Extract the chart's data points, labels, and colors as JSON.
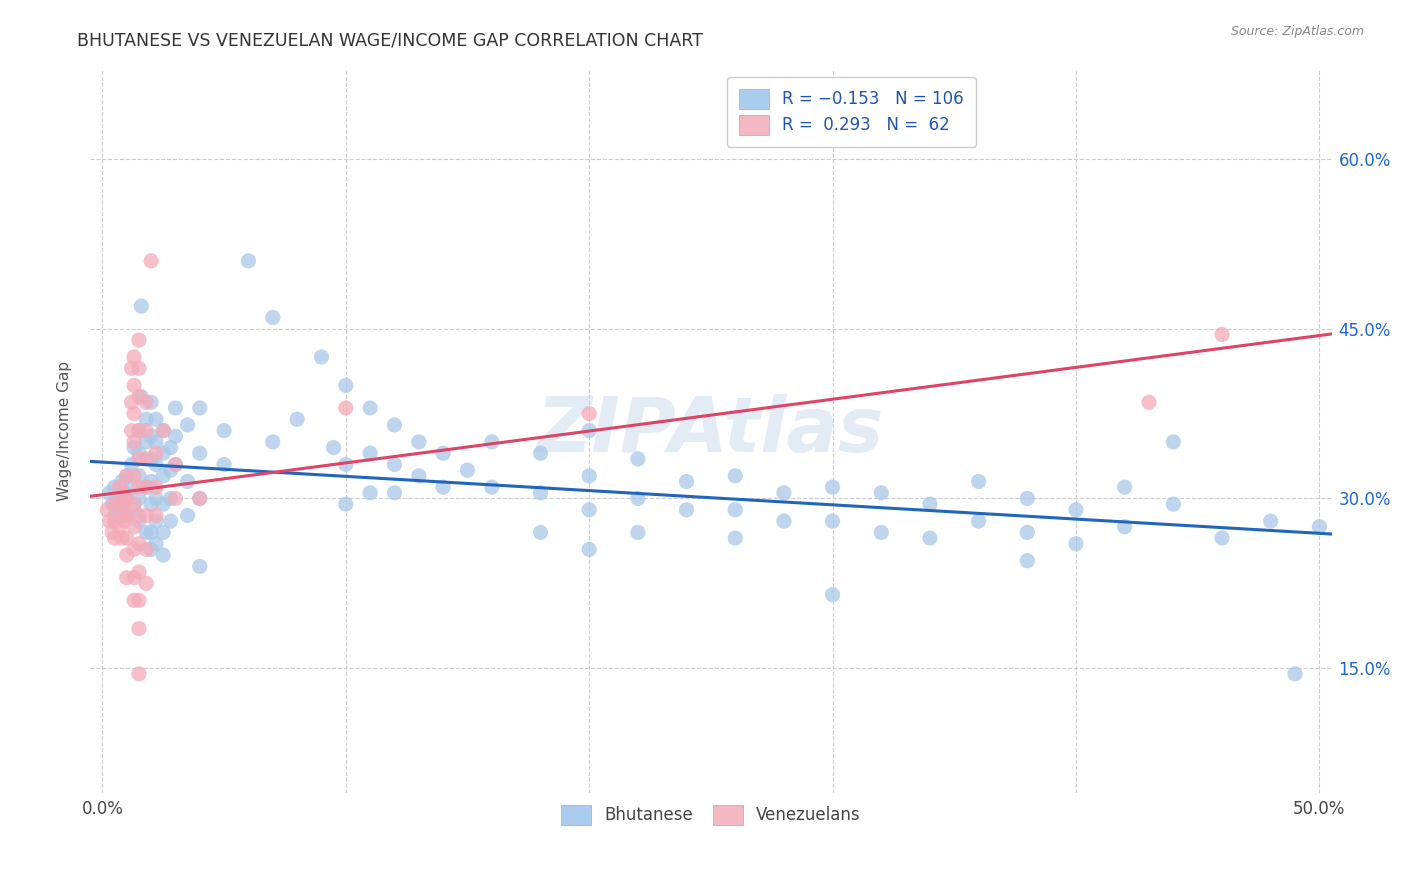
{
  "title": "BHUTANESE VS VENEZUELAN WAGE/INCOME GAP CORRELATION CHART",
  "source": "Source: ZipAtlas.com",
  "ylabel": "Wage/Income Gap",
  "ytick_labels": [
    "15.0%",
    "30.0%",
    "45.0%",
    "60.0%"
  ],
  "ytick_values": [
    0.15,
    0.3,
    0.45,
    0.6
  ],
  "xtick_values": [
    0.0,
    0.1,
    0.2,
    0.3,
    0.4,
    0.5
  ],
  "xlim": [
    -0.005,
    0.505
  ],
  "ylim": [
    0.04,
    0.68
  ],
  "watermark": "ZIPAtlas",
  "blue_scatter_color": "#a8c8e8",
  "pink_scatter_color": "#f4aab8",
  "blue_line_color": "#2266bb",
  "pink_line_color": "#dd4466",
  "blue_legend_color": "#aaccee",
  "pink_legend_color": "#f4b8c4",
  "legend_text_color": "#2255aa",
  "ytick_color": "#2266cc",
  "title_color": "#333333",
  "source_color": "#888888",
  "grid_color": "#cccccc",
  "bottom_label_color": "#444444",
  "blue_points": [
    [
      0.003,
      0.305
    ],
    [
      0.004,
      0.295
    ],
    [
      0.005,
      0.285
    ],
    [
      0.005,
      0.31
    ],
    [
      0.006,
      0.3
    ],
    [
      0.007,
      0.29
    ],
    [
      0.008,
      0.315
    ],
    [
      0.008,
      0.295
    ],
    [
      0.009,
      0.305
    ],
    [
      0.01,
      0.32
    ],
    [
      0.01,
      0.3
    ],
    [
      0.01,
      0.285
    ],
    [
      0.012,
      0.33
    ],
    [
      0.012,
      0.31
    ],
    [
      0.013,
      0.345
    ],
    [
      0.013,
      0.29
    ],
    [
      0.015,
      0.36
    ],
    [
      0.015,
      0.34
    ],
    [
      0.015,
      0.32
    ],
    [
      0.015,
      0.3
    ],
    [
      0.015,
      0.28
    ],
    [
      0.016,
      0.47
    ],
    [
      0.016,
      0.39
    ],
    [
      0.018,
      0.37
    ],
    [
      0.018,
      0.35
    ],
    [
      0.018,
      0.31
    ],
    [
      0.018,
      0.27
    ],
    [
      0.02,
      0.385
    ],
    [
      0.02,
      0.355
    ],
    [
      0.02,
      0.335
    ],
    [
      0.02,
      0.315
    ],
    [
      0.02,
      0.295
    ],
    [
      0.02,
      0.27
    ],
    [
      0.02,
      0.255
    ],
    [
      0.022,
      0.37
    ],
    [
      0.022,
      0.35
    ],
    [
      0.022,
      0.33
    ],
    [
      0.022,
      0.3
    ],
    [
      0.022,
      0.28
    ],
    [
      0.022,
      0.26
    ],
    [
      0.025,
      0.36
    ],
    [
      0.025,
      0.34
    ],
    [
      0.025,
      0.32
    ],
    [
      0.025,
      0.295
    ],
    [
      0.025,
      0.27
    ],
    [
      0.025,
      0.25
    ],
    [
      0.028,
      0.345
    ],
    [
      0.028,
      0.325
    ],
    [
      0.028,
      0.3
    ],
    [
      0.028,
      0.28
    ],
    [
      0.03,
      0.38
    ],
    [
      0.03,
      0.355
    ],
    [
      0.03,
      0.33
    ],
    [
      0.035,
      0.365
    ],
    [
      0.035,
      0.315
    ],
    [
      0.035,
      0.285
    ],
    [
      0.04,
      0.38
    ],
    [
      0.04,
      0.34
    ],
    [
      0.04,
      0.3
    ],
    [
      0.04,
      0.24
    ],
    [
      0.05,
      0.36
    ],
    [
      0.05,
      0.33
    ],
    [
      0.06,
      0.51
    ],
    [
      0.07,
      0.46
    ],
    [
      0.07,
      0.35
    ],
    [
      0.08,
      0.37
    ],
    [
      0.09,
      0.425
    ],
    [
      0.095,
      0.345
    ],
    [
      0.1,
      0.4
    ],
    [
      0.1,
      0.33
    ],
    [
      0.1,
      0.295
    ],
    [
      0.11,
      0.38
    ],
    [
      0.11,
      0.34
    ],
    [
      0.11,
      0.305
    ],
    [
      0.12,
      0.365
    ],
    [
      0.12,
      0.33
    ],
    [
      0.12,
      0.305
    ],
    [
      0.13,
      0.35
    ],
    [
      0.13,
      0.32
    ],
    [
      0.14,
      0.34
    ],
    [
      0.14,
      0.31
    ],
    [
      0.15,
      0.325
    ],
    [
      0.16,
      0.35
    ],
    [
      0.16,
      0.31
    ],
    [
      0.18,
      0.34
    ],
    [
      0.18,
      0.305
    ],
    [
      0.18,
      0.27
    ],
    [
      0.2,
      0.36
    ],
    [
      0.2,
      0.32
    ],
    [
      0.2,
      0.29
    ],
    [
      0.2,
      0.255
    ],
    [
      0.22,
      0.335
    ],
    [
      0.22,
      0.3
    ],
    [
      0.22,
      0.27
    ],
    [
      0.24,
      0.315
    ],
    [
      0.24,
      0.29
    ],
    [
      0.26,
      0.32
    ],
    [
      0.26,
      0.29
    ],
    [
      0.26,
      0.265
    ],
    [
      0.28,
      0.305
    ],
    [
      0.28,
      0.28
    ],
    [
      0.3,
      0.31
    ],
    [
      0.3,
      0.28
    ],
    [
      0.3,
      0.215
    ],
    [
      0.32,
      0.305
    ],
    [
      0.32,
      0.27
    ],
    [
      0.34,
      0.295
    ],
    [
      0.34,
      0.265
    ],
    [
      0.36,
      0.315
    ],
    [
      0.36,
      0.28
    ],
    [
      0.38,
      0.3
    ],
    [
      0.38,
      0.27
    ],
    [
      0.38,
      0.245
    ],
    [
      0.4,
      0.29
    ],
    [
      0.4,
      0.26
    ],
    [
      0.42,
      0.31
    ],
    [
      0.42,
      0.275
    ],
    [
      0.44,
      0.35
    ],
    [
      0.44,
      0.295
    ],
    [
      0.46,
      0.265
    ],
    [
      0.48,
      0.28
    ],
    [
      0.49,
      0.145
    ],
    [
      0.5,
      0.275
    ]
  ],
  "pink_points": [
    [
      0.002,
      0.29
    ],
    [
      0.003,
      0.28
    ],
    [
      0.004,
      0.27
    ],
    [
      0.005,
      0.295
    ],
    [
      0.005,
      0.28
    ],
    [
      0.005,
      0.265
    ],
    [
      0.007,
      0.31
    ],
    [
      0.007,
      0.295
    ],
    [
      0.007,
      0.275
    ],
    [
      0.008,
      0.305
    ],
    [
      0.008,
      0.285
    ],
    [
      0.008,
      0.265
    ],
    [
      0.009,
      0.295
    ],
    [
      0.009,
      0.28
    ],
    [
      0.01,
      0.32
    ],
    [
      0.01,
      0.3
    ],
    [
      0.01,
      0.285
    ],
    [
      0.01,
      0.265
    ],
    [
      0.01,
      0.25
    ],
    [
      0.01,
      0.23
    ],
    [
      0.012,
      0.415
    ],
    [
      0.012,
      0.385
    ],
    [
      0.012,
      0.36
    ],
    [
      0.013,
      0.425
    ],
    [
      0.013,
      0.4
    ],
    [
      0.013,
      0.375
    ],
    [
      0.013,
      0.35
    ],
    [
      0.013,
      0.32
    ],
    [
      0.013,
      0.295
    ],
    [
      0.013,
      0.275
    ],
    [
      0.013,
      0.255
    ],
    [
      0.013,
      0.23
    ],
    [
      0.013,
      0.21
    ],
    [
      0.015,
      0.44
    ],
    [
      0.015,
      0.415
    ],
    [
      0.015,
      0.39
    ],
    [
      0.015,
      0.36
    ],
    [
      0.015,
      0.335
    ],
    [
      0.015,
      0.31
    ],
    [
      0.015,
      0.285
    ],
    [
      0.015,
      0.26
    ],
    [
      0.015,
      0.235
    ],
    [
      0.015,
      0.21
    ],
    [
      0.015,
      0.185
    ],
    [
      0.015,
      0.145
    ],
    [
      0.018,
      0.385
    ],
    [
      0.018,
      0.36
    ],
    [
      0.018,
      0.335
    ],
    [
      0.018,
      0.31
    ],
    [
      0.018,
      0.285
    ],
    [
      0.018,
      0.255
    ],
    [
      0.018,
      0.225
    ],
    [
      0.02,
      0.51
    ],
    [
      0.022,
      0.34
    ],
    [
      0.022,
      0.31
    ],
    [
      0.022,
      0.285
    ],
    [
      0.025,
      0.36
    ],
    [
      0.03,
      0.33
    ],
    [
      0.03,
      0.3
    ],
    [
      0.04,
      0.3
    ],
    [
      0.1,
      0.38
    ],
    [
      0.2,
      0.375
    ],
    [
      0.43,
      0.385
    ],
    [
      0.46,
      0.445
    ]
  ]
}
